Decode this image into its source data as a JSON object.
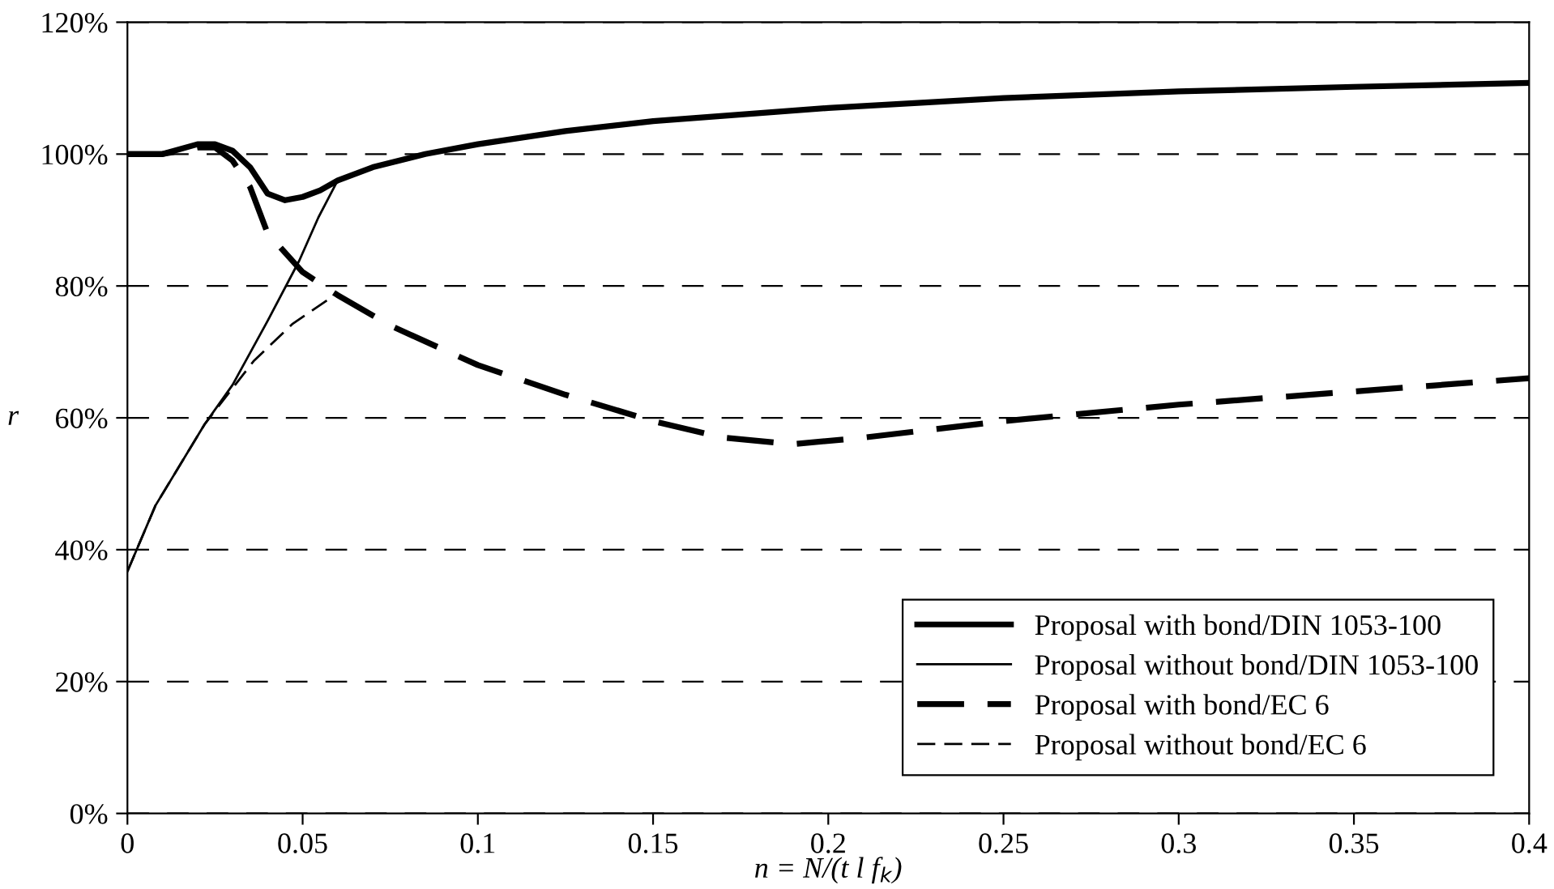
{
  "chart_data": {
    "type": "line",
    "xlabel": "n = N/(t l f$_{k}$)",
    "ylabel": "r",
    "xlim": [
      0,
      0.4
    ],
    "xticks": [
      0,
      0.05,
      0.1,
      0.15,
      0.2,
      0.25,
      0.3,
      0.35,
      0.4
    ],
    "ylim": [
      0,
      120
    ],
    "yticks": [
      {
        "value": 0,
        "label": "0%"
      },
      {
        "value": 20,
        "label": "20%"
      },
      {
        "value": 40,
        "label": "40%"
      },
      {
        "value": 60,
        "label": "60%"
      },
      {
        "value": 80,
        "label": "80%"
      },
      {
        "value": 100,
        "label": "100%"
      },
      {
        "value": 120,
        "label": "120%"
      }
    ],
    "grid": "y",
    "legend": "bottom right",
    "marker": "none",
    "series": [
      {
        "name": "Proposal with bond/DIN 1053-100",
        "color": "#000000",
        "line_style": "solid",
        "x": [
          0,
          0.01,
          0.02,
          0.025,
          0.03,
          0.035,
          0.04,
          0.045,
          0.05,
          0.055,
          0.06,
          0.07,
          0.085,
          0.1,
          0.125,
          0.15,
          0.2,
          0.25,
          0.3,
          0.35,
          0.4
        ],
        "values": [
          100,
          100,
          101.5,
          101.5,
          100.5,
          98,
          94,
          93,
          93.5,
          94.5,
          96,
          98,
          100,
          101.5,
          103.5,
          105,
          107,
          108.5,
          109.5,
          110.2,
          110.8
        ]
      },
      {
        "name": "Proposal without bond/DIN 1053-100",
        "color": "#000000",
        "line_style": "solid",
        "x": [
          0,
          0.008,
          0.022,
          0.03,
          0.04,
          0.049,
          0.0545,
          0.06
        ],
        "values": [
          36.7,
          46.7,
          59,
          65,
          74.7,
          83.8,
          90.4,
          96
        ]
      },
      {
        "name": "Proposal with bond/EC 6",
        "color": "#000000",
        "line_style": "dashed",
        "x": [
          0,
          0.01,
          0.02,
          0.025,
          0.03,
          0.035,
          0.04,
          0.05,
          0.06,
          0.075,
          0.092,
          0.1,
          0.125,
          0.15,
          0.17,
          0.19,
          0.21,
          0.25,
          0.3,
          0.35,
          0.4
        ],
        "values": [
          100,
          100,
          101,
          101,
          99,
          95,
          88,
          82.1,
          78.6,
          74,
          69.9,
          68,
          63.5,
          59.5,
          57,
          56,
          57,
          59.5,
          62,
          64,
          66
        ]
      },
      {
        "name": "Proposal without bond/EC 6",
        "color": "#000000",
        "line_style": "dashed",
        "x": [
          0,
          0.008,
          0.022,
          0.03,
          0.036,
          0.047,
          0.058
        ],
        "values": [
          36.7,
          46.7,
          59,
          64.5,
          68.6,
          74.2,
          78.2
        ]
      }
    ]
  }
}
